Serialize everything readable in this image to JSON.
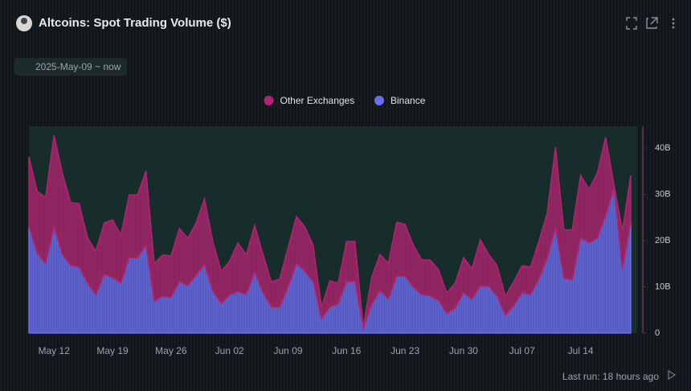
{
  "header": {
    "title": "Altcoins: Spot Trading Volume ($)",
    "date_range": "2025-May-09 ~ now"
  },
  "footer": {
    "last_run": "Last run: 18 hours ago"
  },
  "chart_data": {
    "type": "stacked-area",
    "categories": [
      null,
      null,
      null,
      "May 12",
      null,
      null,
      null,
      null,
      null,
      null,
      "May 19",
      null,
      null,
      null,
      null,
      null,
      null,
      "May 26",
      null,
      null,
      null,
      null,
      null,
      null,
      "Jun 02",
      null,
      null,
      null,
      null,
      null,
      null,
      "Jun 09",
      null,
      null,
      null,
      null,
      null,
      null,
      "Jun 16",
      null,
      null,
      null,
      null,
      null,
      null,
      "Jun 23",
      null,
      null,
      null,
      null,
      null,
      null,
      "Jun 30",
      null,
      null,
      null,
      null,
      null,
      null,
      "Jul 07",
      null,
      null,
      null,
      null,
      null,
      null,
      "Jul 14",
      null,
      null,
      null,
      null,
      null,
      null
    ],
    "series": [
      {
        "name": "Other Exchanges",
        "color": "#b0246f",
        "values": [
          15.0,
          13.4,
          14.4,
          19.8,
          17.6,
          13.6,
          13.7,
          9.9,
          9.5,
          11.1,
          12.5,
          10.4,
          13.6,
          13.6,
          16.0,
          8.2,
          8.9,
          9.0,
          11.5,
          10.2,
          11.3,
          14.2,
          10.8,
          7.0,
          7.3,
          10.5,
          8.6,
          10.1,
          8.3,
          5.5,
          6.1,
          8.5,
          10.2,
          9.6,
          7.9,
          2.6,
          5.7,
          4.5,
          8.7,
          8.7,
          0.3,
          5.9,
          7.8,
          7.8,
          11.7,
          11.2,
          9.1,
          7.5,
          7.8,
          6.6,
          4.5,
          5.4,
          7.6,
          6.6,
          10.1,
          6.9,
          6.6,
          4.2,
          5.2,
          5.9,
          6.0,
          8.1,
          9.9,
          17.4,
          10.5,
          10.8,
          13.6,
          11.6,
          14.1,
          16.9,
          0.7,
          8.5,
          10.1
        ]
      },
      {
        "name": "Binance",
        "color": "#6c6cf0",
        "values": [
          23.1,
          17.2,
          15.0,
          23.0,
          17.0,
          14.6,
          14.3,
          10.8,
          8.2,
          12.7,
          12.0,
          10.8,
          16.3,
          16.3,
          19.0,
          6.8,
          8.0,
          7.7,
          11.1,
          10.3,
          12.5,
          14.8,
          9.0,
          6.4,
          8.2,
          9.0,
          8.3,
          13.2,
          8.7,
          5.6,
          5.6,
          9.9,
          15.0,
          13.4,
          11.1,
          3.0,
          5.6,
          6.3,
          11.1,
          11.1,
          1.0,
          6.1,
          9.2,
          7.3,
          12.3,
          12.3,
          9.9,
          8.3,
          8.0,
          7.1,
          4.2,
          5.4,
          8.7,
          7.3,
          10.1,
          10.1,
          8.0,
          3.8,
          5.9,
          8.7,
          8.3,
          11.7,
          16.0,
          22.8,
          11.8,
          11.5,
          20.5,
          19.5,
          20.5,
          25.4,
          31.3,
          13.6,
          24.0
        ]
      }
    ],
    "ylim": [
      0,
      45
    ],
    "yticks": [
      0,
      {
        "value": 10,
        "label": "10B"
      },
      {
        "value": 20,
        "label": "20B"
      },
      {
        "value": 30,
        "label": "30B"
      },
      {
        "value": 40,
        "label": "40B"
      }
    ],
    "legend": "top-center",
    "y_axis_side": "right"
  }
}
